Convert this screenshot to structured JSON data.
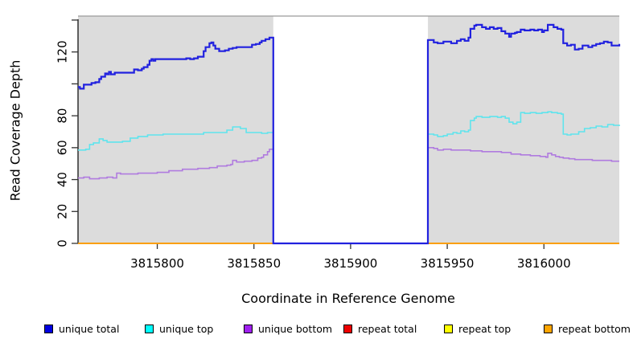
{
  "chart_data": {
    "type": "line",
    "title": "",
    "xlabel": "Coordinate in Reference Genome",
    "ylabel": "Read Coverage Depth",
    "x_range": [
      3815759,
      3816039
    ],
    "y_range": [
      0,
      142.5
    ],
    "x_ticks": [
      3815800,
      3815850,
      3815900,
      3815950,
      3816000
    ],
    "y_ticks_labeled": [
      0,
      20,
      40,
      60,
      80,
      120
    ],
    "y_ticks_unlabeled": [
      100,
      140
    ],
    "grid": "off",
    "legend_position": "bottom",
    "background_color": "#dcdcdc",
    "plot_top_border_color": "#9a9a9a",
    "shaded_regions": [
      [
        3815759,
        3815860
      ],
      [
        3815940,
        3816039
      ]
    ],
    "gap_region": [
      3815860,
      3815940
    ],
    "series": [
      {
        "name": "repeat total",
        "line_color": "#cc0000",
        "legend_color": "#ee0000",
        "line_width": 1.6,
        "segments": [
          [
            [
              3815759,
              0
            ],
            [
              3815860,
              0
            ]
          ],
          [
            [
              3815940,
              0
            ],
            [
              3816039,
              0
            ]
          ]
        ]
      },
      {
        "name": "repeat top",
        "line_color": "#eeee00",
        "legend_color": "#ffff00",
        "line_width": 1.6,
        "segments": [
          [
            [
              3815759,
              0
            ],
            [
              3815860,
              0
            ]
          ],
          [
            [
              3815940,
              0
            ],
            [
              3816039,
              0
            ]
          ]
        ]
      },
      {
        "name": "repeat bottom",
        "line_color": "#ff9e00",
        "legend_color": "#ffa500",
        "line_width": 1.8,
        "segments": [
          [
            [
              3815759,
              0
            ],
            [
              3815860,
              0
            ]
          ],
          [
            [
              3815940,
              0
            ],
            [
              3816039,
              0
            ]
          ]
        ]
      },
      {
        "name": "unique bottom",
        "line_color": "#b07bdf",
        "legend_color": "#a020f0",
        "line_width": 1.6,
        "segments": [
          [
            [
              3815759,
              41
            ],
            [
              3815762,
              41.5
            ],
            [
              3815765,
              40.5
            ],
            [
              3815770,
              41
            ],
            [
              3815774,
              41.5
            ],
            [
              3815777,
              41
            ],
            [
              3815779,
              44
            ],
            [
              3815781,
              43.5
            ],
            [
              3815790,
              44
            ],
            [
              3815800,
              44.5
            ],
            [
              3815806,
              45.5
            ],
            [
              3815813,
              46.5
            ],
            [
              3815821,
              47
            ],
            [
              3815827,
              47.5
            ],
            [
              3815831,
              48.5
            ],
            [
              3815836,
              49
            ],
            [
              3815838,
              49.5
            ],
            [
              3815839,
              52
            ],
            [
              3815841,
              51
            ],
            [
              3815845,
              51.5
            ],
            [
              3815849,
              52
            ],
            [
              3815852,
              53.5
            ],
            [
              3815854,
              54
            ],
            [
              3815855,
              55.5
            ],
            [
              3815857,
              57.5
            ],
            [
              3815858,
              59
            ],
            [
              3815860,
              60
            ],
            [
              3815860,
              0
            ],
            [
              3815940,
              0
            ],
            [
              3815940,
              60
            ],
            [
              3815943,
              59.5
            ],
            [
              3815945,
              58.5
            ],
            [
              3815948,
              59
            ],
            [
              3815952,
              58.5
            ],
            [
              3815957,
              58.5
            ],
            [
              3815962,
              58
            ],
            [
              3815968,
              57.5
            ],
            [
              3815973,
              57.5
            ],
            [
              3815978,
              57
            ],
            [
              3815983,
              56
            ],
            [
              3815988,
              55.5
            ],
            [
              3815993,
              55
            ],
            [
              3815998,
              54.5
            ],
            [
              3816001,
              54
            ],
            [
              3816002,
              56.5
            ],
            [
              3816004,
              55.5
            ],
            [
              3816006,
              54.5
            ],
            [
              3816008,
              54
            ],
            [
              3816010,
              53.5
            ],
            [
              3816013,
              53
            ],
            [
              3816016,
              52.5
            ],
            [
              3816020,
              52.5
            ],
            [
              3816025,
              52
            ],
            [
              3816030,
              52
            ],
            [
              3816035,
              51.5
            ],
            [
              3816039,
              51.5
            ]
          ]
        ]
      },
      {
        "name": "unique top",
        "line_color": "#5fe4ed",
        "legend_color": "#00ffff",
        "line_width": 1.6,
        "segments": [
          [
            [
              3815759,
              58.5
            ],
            [
              3815763,
              59
            ],
            [
              3815765,
              62
            ],
            [
              3815767,
              63
            ],
            [
              3815770,
              65.5
            ],
            [
              3815772,
              64.5
            ],
            [
              3815774,
              63.5
            ],
            [
              3815782,
              64
            ],
            [
              3815786,
              66
            ],
            [
              3815790,
              67
            ],
            [
              3815795,
              68
            ],
            [
              3815803,
              68.5
            ],
            [
              3815815,
              68.5
            ],
            [
              3815824,
              69.5
            ],
            [
              3815836,
              71
            ],
            [
              3815839,
              73
            ],
            [
              3815843,
              72
            ],
            [
              3815846,
              69.5
            ],
            [
              3815854,
              69
            ],
            [
              3815857,
              69.5
            ],
            [
              3815860,
              70.5
            ],
            [
              3815860,
              0
            ],
            [
              3815940,
              0
            ],
            [
              3815940,
              68.5
            ],
            [
              3815943,
              68
            ],
            [
              3815945,
              67
            ],
            [
              3815948,
              67.5
            ],
            [
              3815950,
              68.5
            ],
            [
              3815953,
              69.5
            ],
            [
              3815955,
              69
            ],
            [
              3815957,
              70.5
            ],
            [
              3815959,
              70
            ],
            [
              3815961,
              71
            ],
            [
              3815962,
              77
            ],
            [
              3815964,
              78.5
            ],
            [
              3815965,
              79.5
            ],
            [
              3815968,
              79
            ],
            [
              3815972,
              79.5
            ],
            [
              3815976,
              79
            ],
            [
              3815978,
              79.5
            ],
            [
              3815980,
              78.5
            ],
            [
              3815982,
              76
            ],
            [
              3815984,
              75
            ],
            [
              3815986,
              76
            ],
            [
              3815988,
              82
            ],
            [
              3815990,
              81.5
            ],
            [
              3815993,
              82
            ],
            [
              3815996,
              81.5
            ],
            [
              3815999,
              82
            ],
            [
              3816002,
              82.5
            ],
            [
              3816004,
              82
            ],
            [
              3816007,
              81.5
            ],
            [
              3816009,
              81
            ],
            [
              3816010,
              68.5
            ],
            [
              3816012,
              68
            ],
            [
              3816014,
              68.5
            ],
            [
              3816018,
              70
            ],
            [
              3816021,
              72
            ],
            [
              3816024,
              72.5
            ],
            [
              3816027,
              73.5
            ],
            [
              3816030,
              73
            ],
            [
              3816033,
              74.5
            ],
            [
              3816036,
              74
            ],
            [
              3816039,
              73.5
            ]
          ]
        ]
      },
      {
        "name": "unique total",
        "line_color": "#2121df",
        "legend_color": "#0000e0",
        "line_width": 2.2,
        "segments": [
          [
            [
              3815759,
              98
            ],
            [
              3815760,
              97
            ],
            [
              3815762,
              99.5
            ],
            [
              3815766,
              100.5
            ],
            [
              3815768,
              101
            ],
            [
              3815770,
              103
            ],
            [
              3815771,
              104.5
            ],
            [
              3815773,
              106.5
            ],
            [
              3815774,
              106
            ],
            [
              3815775,
              107.5
            ],
            [
              3815776,
              106
            ],
            [
              3815778,
              107
            ],
            [
              3815787,
              107
            ],
            [
              3815788,
              109
            ],
            [
              3815790,
              108.5
            ],
            [
              3815792,
              109.5
            ],
            [
              3815793,
              110.5
            ],
            [
              3815795,
              112
            ],
            [
              3815796,
              114.5
            ],
            [
              3815797,
              115.5
            ],
            [
              3815798,
              114.5
            ],
            [
              3815799,
              115.5
            ],
            [
              3815813,
              115.5
            ],
            [
              3815815,
              116
            ],
            [
              3815817,
              115.5
            ],
            [
              3815819,
              116
            ],
            [
              3815821,
              117
            ],
            [
              3815824,
              120.5
            ],
            [
              3815825,
              123
            ],
            [
              3815827,
              125.5
            ],
            [
              3815828,
              126
            ],
            [
              3815829,
              124
            ],
            [
              3815830,
              122
            ],
            [
              3815832,
              120.5
            ],
            [
              3815835,
              121
            ],
            [
              3815837,
              122
            ],
            [
              3815839,
              122.5
            ],
            [
              3815841,
              123
            ],
            [
              3815848,
              123
            ],
            [
              3815849,
              124.5
            ],
            [
              3815851,
              125
            ],
            [
              3815853,
              126
            ],
            [
              3815854,
              127
            ],
            [
              3815856,
              128
            ],
            [
              3815858,
              129
            ],
            [
              3815860,
              129
            ],
            [
              3815860,
              0
            ],
            [
              3815940,
              0
            ],
            [
              3815940,
              127.5
            ],
            [
              3815943,
              126
            ],
            [
              3815945,
              125.5
            ],
            [
              3815948,
              126.5
            ],
            [
              3815952,
              125.5
            ],
            [
              3815955,
              127
            ],
            [
              3815957,
              128
            ],
            [
              3815959,
              127
            ],
            [
              3815961,
              129
            ],
            [
              3815962,
              134.5
            ],
            [
              3815964,
              136.5
            ],
            [
              3815965,
              137
            ],
            [
              3815968,
              135.5
            ],
            [
              3815970,
              134.5
            ],
            [
              3815972,
              135.5
            ],
            [
              3815974,
              134.5
            ],
            [
              3815976,
              135
            ],
            [
              3815978,
              133
            ],
            [
              3815980,
              131.5
            ],
            [
              3815982,
              129.5
            ],
            [
              3815983,
              131.5
            ],
            [
              3815985,
              132
            ],
            [
              3815986,
              132.5
            ],
            [
              3815988,
              134
            ],
            [
              3815990,
              133.5
            ],
            [
              3815993,
              134
            ],
            [
              3815995,
              133.5
            ],
            [
              3815997,
              134
            ],
            [
              3815999,
              132.5
            ],
            [
              3816000,
              133.5
            ],
            [
              3816002,
              137
            ],
            [
              3816004,
              137
            ],
            [
              3816005,
              135.5
            ],
            [
              3816007,
              134.5
            ],
            [
              3816009,
              134
            ],
            [
              3816010,
              125.5
            ],
            [
              3816012,
              124
            ],
            [
              3816014,
              124.5
            ],
            [
              3816016,
              121.5
            ],
            [
              3816018,
              122
            ],
            [
              3816020,
              124
            ],
            [
              3816023,
              123
            ],
            [
              3816025,
              124
            ],
            [
              3816027,
              125
            ],
            [
              3816029,
              125.5
            ],
            [
              3816031,
              126.5
            ],
            [
              3816033,
              126
            ],
            [
              3816035,
              124
            ],
            [
              3816037,
              124
            ],
            [
              3816039,
              125
            ]
          ]
        ]
      }
    ],
    "legend": {
      "items": [
        {
          "label": "unique total",
          "color": "#0000e0"
        },
        {
          "label": "unique top",
          "color": "#00ffff"
        },
        {
          "label": "unique bottom",
          "color": "#a020f0"
        },
        {
          "label": "repeat total",
          "color": "#ee0000"
        },
        {
          "label": "repeat top",
          "color": "#ffff00"
        },
        {
          "label": "repeat bottom",
          "color": "#ffa500"
        }
      ]
    }
  }
}
